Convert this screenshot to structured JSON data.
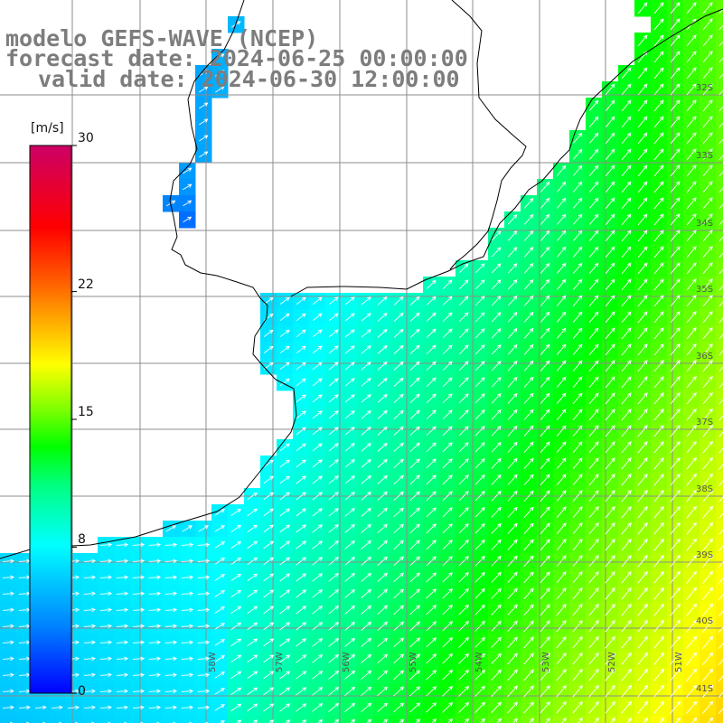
{
  "header": {
    "line1": "modelo GEFS-WAVE (NCEP)",
    "line2": "forecast date: 2024-06-25 00:00:00",
    "line3": "valid date: 2024-06-30 12:00:00"
  },
  "colorbar": {
    "units": "[m/s]",
    "ticks": [
      "30",
      "22",
      "15",
      "8",
      "0"
    ],
    "tick_values": [
      30,
      22,
      15,
      8,
      0
    ],
    "min": 0,
    "max": 30,
    "colors": [
      "#0000ff",
      "#0080ff",
      "#00ffff",
      "#00ff80",
      "#00ff00",
      "#80ff00",
      "#ffff00",
      "#ffaa00",
      "#ff5500",
      "#ff0000",
      "#cc0066"
    ]
  },
  "map": {
    "lat_labels": [
      "32S",
      "33S",
      "34S",
      "35S",
      "36S",
      "37S",
      "38S",
      "39S",
      "40S",
      "41S"
    ],
    "lon_labels": [
      "58W",
      "57W",
      "56W",
      "55W",
      "54W",
      "53W",
      "52W",
      "51W"
    ],
    "lon_range": [
      "60W",
      "50W"
    ],
    "lat_range": [
      "31S",
      "41S"
    ],
    "land_color": "#ffffff",
    "coast_color": "#000000",
    "grid_color": "#8c8c8c",
    "arrow_color": "#ffffff",
    "field": "wind speed",
    "wind_direction": "from southwest"
  }
}
